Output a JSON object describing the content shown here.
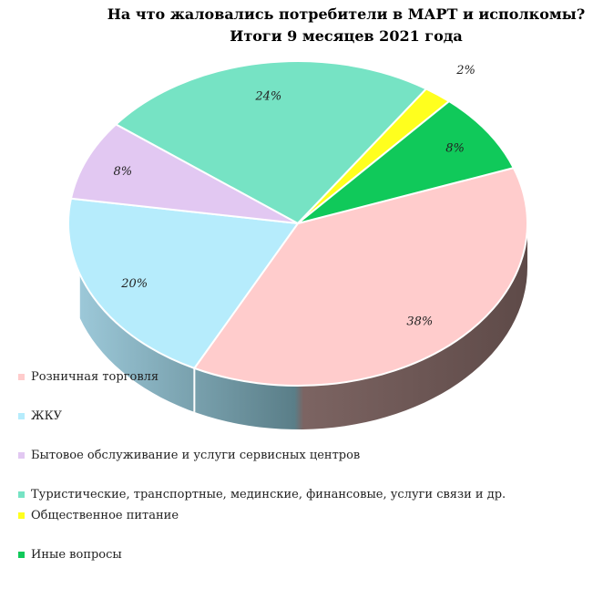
{
  "chart_data": {
    "type": "pie",
    "title": "На что жаловались потребители в МАРТ и исполкомы?",
    "subtitle": "Итоги 9 месяцев 2021 года",
    "labels": [
      "Розничная торговля",
      "ЖКУ",
      "Бытовое обслуживание и услуги сервисных центров",
      "Туристические, транспортные, мединские, финансовые, услуги связи и др.",
      "Общественное питание",
      "Иные вопросы"
    ],
    "values": [
      38,
      20,
      8,
      24,
      2,
      8
    ],
    "value_labels": [
      "38%",
      "20%",
      "8%",
      "24%",
      "2%",
      "8%"
    ],
    "colors": [
      "#FFCCCC",
      "#B6ECFC",
      "#E2C8F2",
      "#76E3C4",
      "#FFFF1E",
      "#10C95A"
    ],
    "side_colors": [
      "#6B5552",
      "#6E99A8",
      "#8E7E96",
      "#4B8E7A",
      "#9A9A12",
      "#0B7D38"
    ],
    "legend_position": "bottom-left",
    "style": "3d"
  }
}
